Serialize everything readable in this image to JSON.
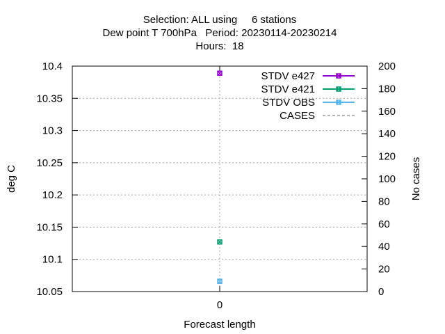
{
  "chart_data": {
    "type": "scatter",
    "title_lines": [
      "Selection: ALL using     6 stations",
      "Dew point T 700hPa   Period: 20230114-20230214",
      "Hours:  18"
    ],
    "xlabel": "Forecast length",
    "ylabel": "deg C",
    "y2label": "No cases",
    "x_ticks": [
      "0"
    ],
    "y_ticks": [
      "10.05",
      "10.1",
      "10.15",
      "10.2",
      "10.25",
      "10.3",
      "10.35",
      "10.4"
    ],
    "y2_ticks": [
      "0",
      "20",
      "40",
      "60",
      "80",
      "100",
      "120",
      "140",
      "160",
      "180",
      "200"
    ],
    "ylim": [
      10.05,
      10.4
    ],
    "y2lim": [
      0,
      200
    ],
    "xlim": [
      -1,
      1
    ],
    "grid": true,
    "legend_position": "top-right",
    "series": [
      {
        "name": "STDV e427",
        "color": "#9400d3",
        "x": [
          0
        ],
        "values": [
          10.389
        ],
        "marker": "x-box"
      },
      {
        "name": "STDV e421",
        "color": "#009e73",
        "x": [
          0
        ],
        "values": [
          10.127
        ],
        "marker": "x-box"
      },
      {
        "name": "STDV OBS",
        "color": "#56b4e9",
        "x": [
          0
        ],
        "values": [
          10.066
        ],
        "marker": "x-box"
      },
      {
        "name": "CASES",
        "color": "#999999",
        "x": [],
        "values": [],
        "marker": "dashed-line"
      }
    ]
  }
}
